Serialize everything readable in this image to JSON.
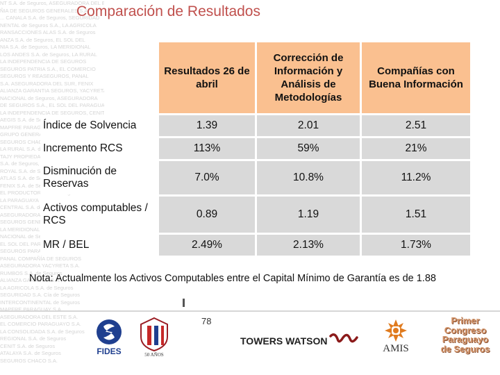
{
  "title": "Comparación de Resultados",
  "table": {
    "headers": [
      "",
      "Resultados 26 de abril",
      "Corrección de Información y Análisis de Metodologías",
      "Compañías con Buena Información"
    ],
    "rows": [
      {
        "label": "Índice de Solvencia",
        "values": [
          "1.39",
          "2.01",
          "2.51"
        ]
      },
      {
        "label": "Incremento RCS",
        "values": [
          "113%",
          "59%",
          "21%"
        ]
      },
      {
        "label": "Disminución de Reservas",
        "values": [
          "7.0%",
          "10.8%",
          "11.2%"
        ]
      },
      {
        "label": "Activos computables / RCS",
        "values": [
          "0.89",
          "1.19",
          "1.51"
        ]
      },
      {
        "label": "MR / BEL",
        "values": [
          "2.49%",
          "2.13%",
          "1.73%"
        ]
      }
    ]
  },
  "note": "Nota: Actualmente los Activos Computables entre el Capital Mínimo de Garantía es de 1.88",
  "page_number": "78",
  "logos": {
    "fides": "FIDES",
    "fifty_years": "50 AÑOS",
    "towers_watson": "TOWERS WATSON",
    "amis": "AMIS",
    "congreso": [
      "Primer",
      "Congreso",
      "Paraguayo",
      "de Seguros"
    ]
  },
  "background_lines": [
    "NT S.A. de Seguros, ASEGURADORA DEL ESTE",
    "ÑIA DE SEGUROS GENERALES S.A.",
    "... CANALA S.A. de Seguros, SEGURIDAD",
    "NENTAL de Seguros S.A., LA AGRICOLA",
    "RANSACCIONES ALAS S.A. de Seguros",
    "ANZA S.A. de Seguros, EL SOL DEL",
    "NIA S.A. de Seguros, LA MERIDIONAL",
    "LOS ANDES S.A. de Seguros, LA RURAL",
    "LA INDEPENDENCIA DE SEGUROS",
    "SEGUROS PATRIA S.A., EL COMERCIO",
    "SEGUROS Y REASEGUROS, PANAL",
    "S.A. ASEGURADORA DEL SUR, FENIX",
    "ALIANZA GARANTIA SEGUROS, YACYRETA",
    "NACIONAL de Seguros, ASEGURADORA",
    "DE SEGUROS S.A., EL SOL DEL PARAGUAY",
    "LA INDEPENDENCIA DE SEGUROS, CENIT",
    "AEGIS S.A. de Seguros, MAPFRE",
    "MAPFRE PARAGUAY S.A., INTERCONTINENTAL",
    "GRUPO GENERAL DE SEGUROS",
    "SEGUROS CHACO S.A., PATRIA",
    "LA RURAL S.A. de Seguros",
    "TAJY PROPIEDAD COOPERATIVA",
    "S.A. de Seguros, LA CONSOLIDADA",
    "ROYAL S.A. de Seguros, REGIONAL",
    "ATLAS S.A. de Seguros, SEGUROS",
    "FENIX S.A. de Seguros y Reaseguros",
    "EL PRODUCTOR S.A. de Seguros",
    "LA PARAGUAYA S.A. de Seguros",
    "CENTRAL S.A. de Seguros",
    "ASEGURADORA TAJY PROPIEDAD",
    "SEGUROS GENERALES S.A. (SEGESA)",
    "LA MERIDIONAL S.A. de Seguros",
    "NACIONAL de Seguros S.A.",
    "EL SOL DEL PARAGUAY S.A.",
    "SEGUROS PARAGUAY S.A.",
    "PANAL COMPAÑÍA DE SEGUROS",
    "ASEGURADORA YACYRETA S.A.",
    "RUMBOS S.A. de Seguros",
    "ALIANZA GARANTIA S.A.",
    "LA AGRICOLA S.A. de Seguros",
    "SEGURIDAD S.A. Cía de Seguros",
    "INTERCONTINENTAL de Seguros",
    "MAPFRE PARAGUAY S.A.",
    "ASEGURADORA DEL ESTE S.A.",
    "EL COMERCIO PARAGUAYO S.A.",
    "LA CONSOLIDADA S.A. de Seguros",
    "REGIONAL S.A. de Seguros",
    "CENIT S.A. de Seguros",
    "ATALAYA S.A. de Seguros",
    "SEGUROS CHACO S.A."
  ]
}
